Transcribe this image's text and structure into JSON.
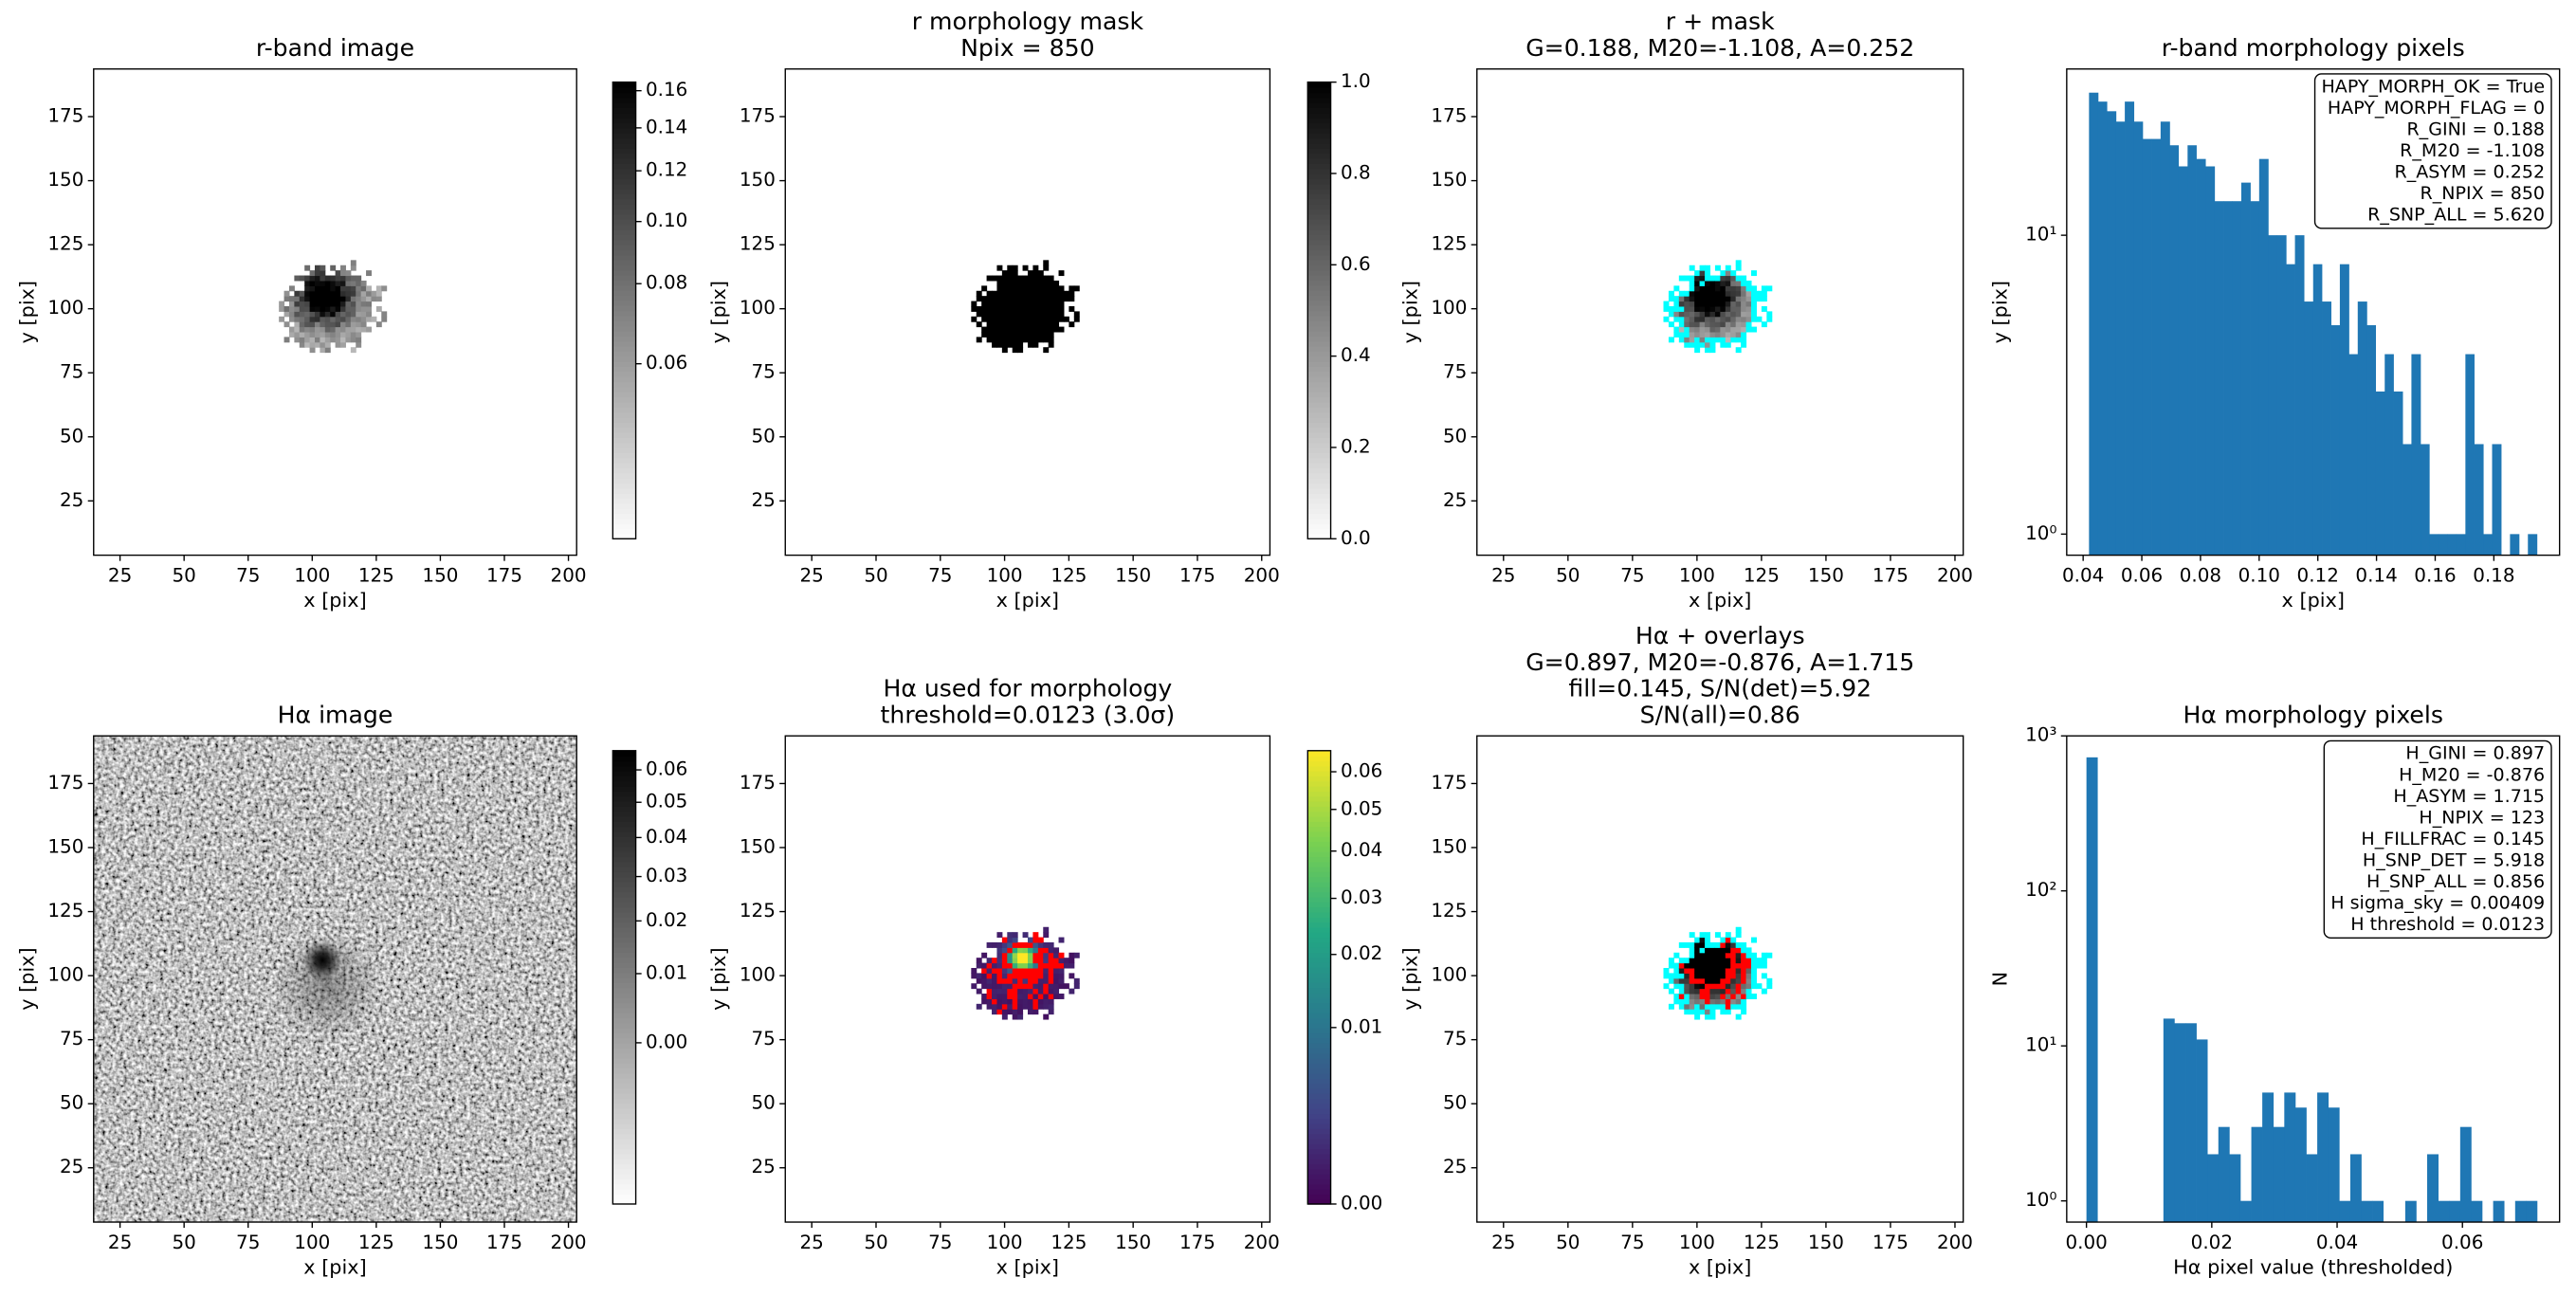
{
  "chart_data": [
    {
      "type": "image",
      "title": [
        "r-band image"
      ],
      "xlabel": "x [pix]",
      "ylabel": "y [pix]",
      "xlim": [
        14.7,
        203.2
      ],
      "ylim": [
        3.8,
        193.6
      ],
      "xticks": [
        25,
        50,
        75,
        100,
        125,
        150,
        175,
        200
      ],
      "yticks": [
        25,
        50,
        75,
        100,
        125,
        150,
        175
      ],
      "cmap": "gray_r",
      "colorbar": {
        "scale": "log",
        "clim": [
          0.032,
          0.165
        ],
        "ticks": [
          0.06,
          0.08,
          {
            "value": 0.1,
            "label": "0.10"
          },
          0.12,
          0.14,
          0.16
        ]
      }
    },
    {
      "type": "image",
      "title": [
        "r morphology mask",
        "Npix = 850"
      ],
      "xlabel": "x [pix]",
      "ylabel": "y [pix]",
      "xlim": [
        14.7,
        203.2
      ],
      "ylim": [
        3.8,
        193.6
      ],
      "xticks": [
        25,
        50,
        75,
        100,
        125,
        150,
        175,
        200
      ],
      "yticks": [
        25,
        50,
        75,
        100,
        125,
        150,
        175
      ],
      "cmap": "gray_r",
      "colorbar": {
        "scale": "linear",
        "clim": [
          0,
          1
        ],
        "ticks": [
          {
            "value": 0,
            "label": "0.0"
          },
          0.2,
          0.4,
          0.6,
          0.8,
          {
            "value": 1,
            "label": "1.0"
          }
        ]
      }
    },
    {
      "type": "image",
      "title": [
        "r + mask",
        "G=0.188, M20=-1.108, A=0.252"
      ],
      "xlabel": "x [pix]",
      "ylabel": "y [pix]",
      "xlim": [
        14.7,
        203.2
      ],
      "ylim": [
        3.8,
        193.6
      ],
      "xticks": [
        25,
        50,
        75,
        100,
        125,
        150,
        175,
        200
      ],
      "yticks": [
        25,
        50,
        75,
        100,
        125,
        150,
        175
      ],
      "cmap": "gray_r",
      "overlay_colors": [
        "#00ffff"
      ]
    },
    {
      "type": "histogram",
      "title": [
        "r-band morphology pixels"
      ],
      "xlabel": "x [pix]",
      "ylabel": "y [pix]",
      "color": "#1f77b4",
      "ylog": true,
      "bins": [
        0.042,
        0.0451,
        0.0481,
        0.0512,
        0.0542,
        0.0573,
        0.0603,
        0.0634,
        0.0664,
        0.0695,
        0.0725,
        0.0756,
        0.0786,
        0.0817,
        0.0848,
        0.0878,
        0.0909,
        0.0939,
        0.097,
        0.1,
        0.1031,
        0.1061,
        0.1092,
        0.1122,
        0.1153,
        0.1184,
        0.1214,
        0.1245,
        0.1275,
        0.1306,
        0.1336,
        0.1367,
        0.1397,
        0.1428,
        0.1458,
        0.1489,
        0.1519,
        0.155,
        0.158,
        0.1611,
        0.1641,
        0.1672,
        0.1703,
        0.1733,
        0.1764,
        0.1794,
        0.1825,
        0.1855,
        0.1886,
        0.1916,
        0.1947
      ],
      "values": [
        30,
        28,
        26,
        24,
        28,
        24,
        21,
        21,
        24,
        20,
        17,
        20,
        18,
        17,
        13,
        13,
        13,
        15,
        13,
        18,
        10,
        10,
        8,
        10,
        6,
        8,
        6,
        5,
        8,
        4,
        6,
        5,
        3,
        4,
        3,
        2,
        4,
        2,
        1,
        1,
        1,
        1,
        4,
        2,
        1,
        2,
        0,
        1,
        0,
        1
      ],
      "xlim": [
        0.0344,
        0.2024
      ],
      "ylim": [
        0.85,
        36
      ],
      "xticks": [
        0.04,
        0.06,
        0.08,
        {
          "value": 0.1,
          "label": "0.10"
        },
        0.12,
        0.14,
        0.16,
        0.18
      ],
      "yticks": [
        {
          "value": 1,
          "label": "10⁰"
        },
        {
          "value": 10,
          "label": "10¹"
        }
      ],
      "annotation": [
        "HAPY_MORPH_OK = True",
        "HAPY_MORPH_FLAG = 0",
        "R_GINI = 0.188",
        "R_M20 = -1.108",
        "R_ASYM = 0.252",
        "R_NPIX = 850",
        "R_SNP_ALL = 5.620"
      ]
    },
    {
      "type": "image",
      "title": [
        "Hα image"
      ],
      "xlabel": "x [pix]",
      "ylabel": "y [pix]",
      "xlim": [
        14.7,
        203.2
      ],
      "ylim": [
        3.8,
        193.6
      ],
      "xticks": [
        25,
        50,
        75,
        100,
        125,
        150,
        175,
        200
      ],
      "yticks": [
        25,
        50,
        75,
        100,
        125,
        150,
        175
      ],
      "cmap": "gray_r",
      "colorbar": {
        "scale": "sqrt",
        "clim": [
          -0.0096,
          0.0663
        ],
        "ticks": [
          {
            "value": 0,
            "label": "0.00"
          },
          0.01,
          0.02,
          0.03,
          0.04,
          0.05,
          0.06
        ]
      }
    },
    {
      "type": "image",
      "title": [
        "Hα used for morphology",
        "threshold=0.0123 (3.0σ)"
      ],
      "xlabel": "x [pix]",
      "ylabel": "y [pix]",
      "xlim": [
        14.7,
        203.2
      ],
      "ylim": [
        3.8,
        193.6
      ],
      "xticks": [
        25,
        50,
        75,
        100,
        125,
        150,
        175,
        200
      ],
      "yticks": [
        25,
        50,
        75,
        100,
        125,
        150,
        175
      ],
      "cmap": "viridis",
      "overlay_colors": [
        "#ff0000"
      ],
      "colorbar": {
        "scale": "sqrt",
        "clim": [
          0,
          0.066
        ],
        "ticks": [
          {
            "value": 0,
            "label": "0.00"
          },
          0.01,
          0.02,
          0.03,
          0.04,
          0.05,
          0.06
        ]
      }
    },
    {
      "type": "image",
      "title": [
        "Hα + overlays",
        "G=0.897, M20=-0.876, A=1.715",
        "fill=0.145, S/N(det)=5.92",
        "S/N(all)=0.86"
      ],
      "xlabel": "x [pix]",
      "ylabel": "y [pix]",
      "xlim": [
        14.7,
        203.2
      ],
      "ylim": [
        3.8,
        193.6
      ],
      "xticks": [
        25,
        50,
        75,
        100,
        125,
        150,
        175,
        200
      ],
      "yticks": [
        25,
        50,
        75,
        100,
        125,
        150,
        175
      ],
      "cmap": "gray_r",
      "overlay_colors": [
        "#00ffff",
        "#ff0000"
      ]
    },
    {
      "type": "histogram",
      "title": [
        "Hα morphology pixels"
      ],
      "xlabel": "Hα pixel value (thresholded)",
      "ylabel": "N",
      "color": "#1f77b4",
      "ylog": true,
      "bins": [
        0,
        0.00175,
        0.00351,
        0.00526,
        0.00702,
        0.00877,
        0.01052,
        0.01228,
        0.01403,
        0.01579,
        0.01754,
        0.01929,
        0.02105,
        0.0228,
        0.02456,
        0.02631,
        0.02806,
        0.02982,
        0.03157,
        0.03333,
        0.03508,
        0.03683,
        0.03859,
        0.04034,
        0.0421,
        0.04385,
        0.0456,
        0.04736,
        0.04911,
        0.05087,
        0.05262,
        0.05437,
        0.05613,
        0.05788,
        0.05964,
        0.06139,
        0.06314,
        0.0649,
        0.06665,
        0.06841,
        0.07016,
        0.07191
      ],
      "values": [
        727,
        0,
        0,
        0,
        0,
        0,
        0,
        15,
        14,
        14,
        11,
        2,
        3,
        2,
        1,
        3,
        5,
        3,
        5,
        4,
        2,
        5,
        4,
        1,
        2,
        1,
        1,
        0,
        0,
        1,
        0,
        2,
        1,
        1,
        3,
        1,
        0,
        1,
        0,
        1,
        1
      ],
      "xlim": [
        -0.00315,
        0.0755
      ],
      "ylim": [
        0.73,
        1000
      ],
      "xticks": [
        {
          "value": 0,
          "label": "0.00"
        },
        0.02,
        0.04,
        0.06
      ],
      "yticks": [
        {
          "value": 1,
          "label": "10⁰"
        },
        {
          "value": 10,
          "label": "10¹"
        },
        {
          "value": 100,
          "label": "10²"
        },
        {
          "value": 1000,
          "label": "10³"
        }
      ],
      "annotation": [
        "H_GINI = 0.897",
        "H_M20 = -0.876",
        "H_ASYM = 1.715",
        "H_NPIX = 123",
        "H_FILLFRAC = 0.145",
        "H_SNP_DET = 5.918",
        "H_SNP_ALL = 0.856",
        "H sigma_sky = 0.00409",
        "H threshold = 0.0123"
      ]
    }
  ]
}
